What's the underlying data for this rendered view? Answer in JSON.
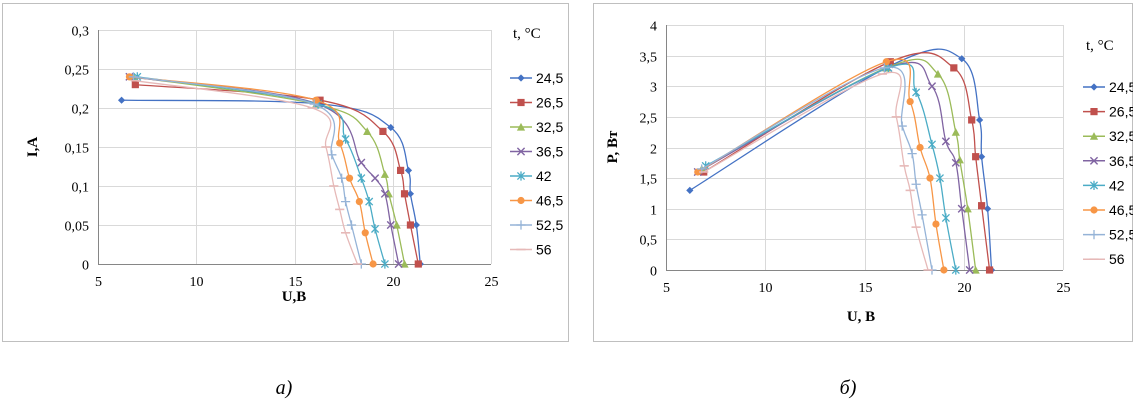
{
  "chart_data": [
    {
      "type": "line",
      "panel_caption": "a)",
      "xlabel": "U,B",
      "ylabel": "I,A",
      "xlim": [
        5,
        25
      ],
      "ylim": [
        0,
        0.3
      ],
      "x_ticks": [
        "5",
        "10",
        "15",
        "20",
        "25"
      ],
      "y_ticks": [
        "0",
        "0,05",
        "0,1",
        "0,15",
        "0,2",
        "0,25",
        "0,3"
      ],
      "grid": true,
      "legend_title": "t, °C",
      "legend_position": "right",
      "series": [
        {
          "name": "24,5",
          "color": "#4472c4",
          "marker": "diamond",
          "points": [
            [
              6.2,
              0.21
            ],
            [
              16.4,
              0.205
            ],
            [
              19.9,
              0.175
            ],
            [
              20.8,
              0.12
            ],
            [
              20.9,
              0.09
            ],
            [
              21.2,
              0.05
            ],
            [
              21.4,
              0
            ]
          ]
        },
        {
          "name": "26,5",
          "color": "#c0504d",
          "marker": "square",
          "points": [
            [
              6.9,
              0.23
            ],
            [
              16.3,
              0.21
            ],
            [
              19.5,
              0.17
            ],
            [
              20.4,
              0.12
            ],
            [
              20.6,
              0.09
            ],
            [
              20.9,
              0.05
            ],
            [
              21.3,
              0
            ]
          ]
        },
        {
          "name": "32,5",
          "color": "#9bbb59",
          "marker": "triangle",
          "points": [
            [
              6.8,
              0.24
            ],
            [
              16.1,
              0.205
            ],
            [
              18.7,
              0.17
            ],
            [
              19.6,
              0.115
            ],
            [
              19.8,
              0.09
            ],
            [
              20.2,
              0.05
            ],
            [
              20.6,
              0
            ]
          ]
        },
        {
          "name": "36,5",
          "color": "#8064a2",
          "marker": "x",
          "points": [
            [
              6.6,
              0.24
            ],
            [
              16.2,
              0.205
            ],
            [
              18.4,
              0.13
            ],
            [
              19.1,
              0.11
            ],
            [
              19.6,
              0.09
            ],
            [
              19.9,
              0.05
            ],
            [
              20.3,
              0
            ]
          ]
        },
        {
          "name": "42",
          "color": "#4bacc6",
          "marker": "asterisk",
          "points": [
            [
              7.0,
              0.24
            ],
            [
              16.2,
              0.205
            ],
            [
              17.6,
              0.16
            ],
            [
              18.4,
              0.11
            ],
            [
              18.8,
              0.08
            ],
            [
              19.1,
              0.045
            ],
            [
              19.6,
              0
            ]
          ]
        },
        {
          "name": "46,5",
          "color": "#f79646",
          "marker": "circle",
          "points": [
            [
              6.6,
              0.24
            ],
            [
              16.1,
              0.21
            ],
            [
              17.3,
              0.155
            ],
            [
              17.8,
              0.11
            ],
            [
              18.3,
              0.08
            ],
            [
              18.6,
              0.04
            ],
            [
              19.0,
              0
            ]
          ]
        },
        {
          "name": "52,5",
          "color": "#95b3d7",
          "marker": "plus",
          "points": [
            [
              6.8,
              0.24
            ],
            [
              16.0,
              0.205
            ],
            [
              16.9,
              0.14
            ],
            [
              17.4,
              0.11
            ],
            [
              17.6,
              0.08
            ],
            [
              17.9,
              0.05
            ],
            [
              18.4,
              0
            ]
          ]
        },
        {
          "name": "56",
          "color": "#e6b9b8",
          "marker": "dash",
          "points": [
            [
              6.9,
              0.235
            ],
            [
              15.9,
              0.2
            ],
            [
              16.6,
              0.15
            ],
            [
              17.0,
              0.1
            ],
            [
              17.3,
              0.07
            ],
            [
              17.6,
              0.04
            ],
            [
              18.2,
              0
            ]
          ]
        }
      ]
    },
    {
      "type": "line",
      "panel_caption": "б)",
      "xlabel": "U, B",
      "ylabel": "P, Вт",
      "xlim": [
        5,
        25
      ],
      "ylim": [
        0,
        4
      ],
      "x_ticks": [
        "5",
        "10",
        "15",
        "20",
        "25"
      ],
      "y_ticks": [
        "0",
        "0,5",
        "1",
        "1,5",
        "2",
        "2,5",
        "3",
        "3,5",
        "4"
      ],
      "grid": true,
      "legend_title": "t, °C",
      "legend_position": "right",
      "series": [
        {
          "name": "24,5",
          "color": "#4472c4",
          "marker": "diamond",
          "points": [
            [
              6.2,
              1.3
            ],
            [
              16.4,
              3.35
            ],
            [
              19.9,
              3.45
            ],
            [
              20.8,
              2.45
            ],
            [
              20.9,
              1.85
            ],
            [
              21.2,
              1.0
            ],
            [
              21.4,
              0
            ]
          ]
        },
        {
          "name": "26,5",
          "color": "#c0504d",
          "marker": "square",
          "points": [
            [
              6.9,
              1.6
            ],
            [
              16.3,
              3.4
            ],
            [
              19.5,
              3.3
            ],
            [
              20.4,
              2.45
            ],
            [
              20.6,
              1.85
            ],
            [
              20.9,
              1.05
            ],
            [
              21.3,
              0
            ]
          ]
        },
        {
          "name": "32,5",
          "color": "#9bbb59",
          "marker": "triangle",
          "points": [
            [
              6.8,
              1.65
            ],
            [
              16.1,
              3.3
            ],
            [
              18.7,
              3.2
            ],
            [
              19.6,
              2.25
            ],
            [
              19.8,
              1.8
            ],
            [
              20.2,
              1.0
            ],
            [
              20.6,
              0
            ]
          ]
        },
        {
          "name": "36,5",
          "color": "#8064a2",
          "marker": "x",
          "points": [
            [
              6.6,
              1.6
            ],
            [
              16.2,
              3.3
            ],
            [
              18.4,
              3.0
            ],
            [
              19.1,
              2.1
            ],
            [
              19.6,
              1.75
            ],
            [
              19.9,
              1.0
            ],
            [
              20.3,
              0
            ]
          ]
        },
        {
          "name": "42",
          "color": "#4bacc6",
          "marker": "asterisk",
          "points": [
            [
              7.0,
              1.7
            ],
            [
              16.2,
              3.3
            ],
            [
              17.6,
              2.9
            ],
            [
              18.4,
              2.05
            ],
            [
              18.8,
              1.5
            ],
            [
              19.1,
              0.85
            ],
            [
              19.6,
              0
            ]
          ]
        },
        {
          "name": "46,5",
          "color": "#f79646",
          "marker": "circle",
          "points": [
            [
              6.6,
              1.6
            ],
            [
              16.1,
              3.4
            ],
            [
              17.3,
              2.75
            ],
            [
              17.8,
              2.0
            ],
            [
              18.3,
              1.5
            ],
            [
              18.6,
              0.75
            ],
            [
              19.0,
              0
            ]
          ]
        },
        {
          "name": "52,5",
          "color": "#95b3d7",
          "marker": "plus",
          "points": [
            [
              6.8,
              1.65
            ],
            [
              16.0,
              3.3
            ],
            [
              16.9,
              2.35
            ],
            [
              17.4,
              1.9
            ],
            [
              17.6,
              1.4
            ],
            [
              17.9,
              0.9
            ],
            [
              18.4,
              0
            ]
          ]
        },
        {
          "name": "56",
          "color": "#e6b9b8",
          "marker": "dash",
          "points": [
            [
              6.9,
              1.6
            ],
            [
              15.9,
              3.2
            ],
            [
              16.6,
              2.5
            ],
            [
              17.0,
              1.7
            ],
            [
              17.3,
              1.3
            ],
            [
              17.6,
              0.7
            ],
            [
              18.2,
              0
            ]
          ]
        }
      ]
    }
  ]
}
